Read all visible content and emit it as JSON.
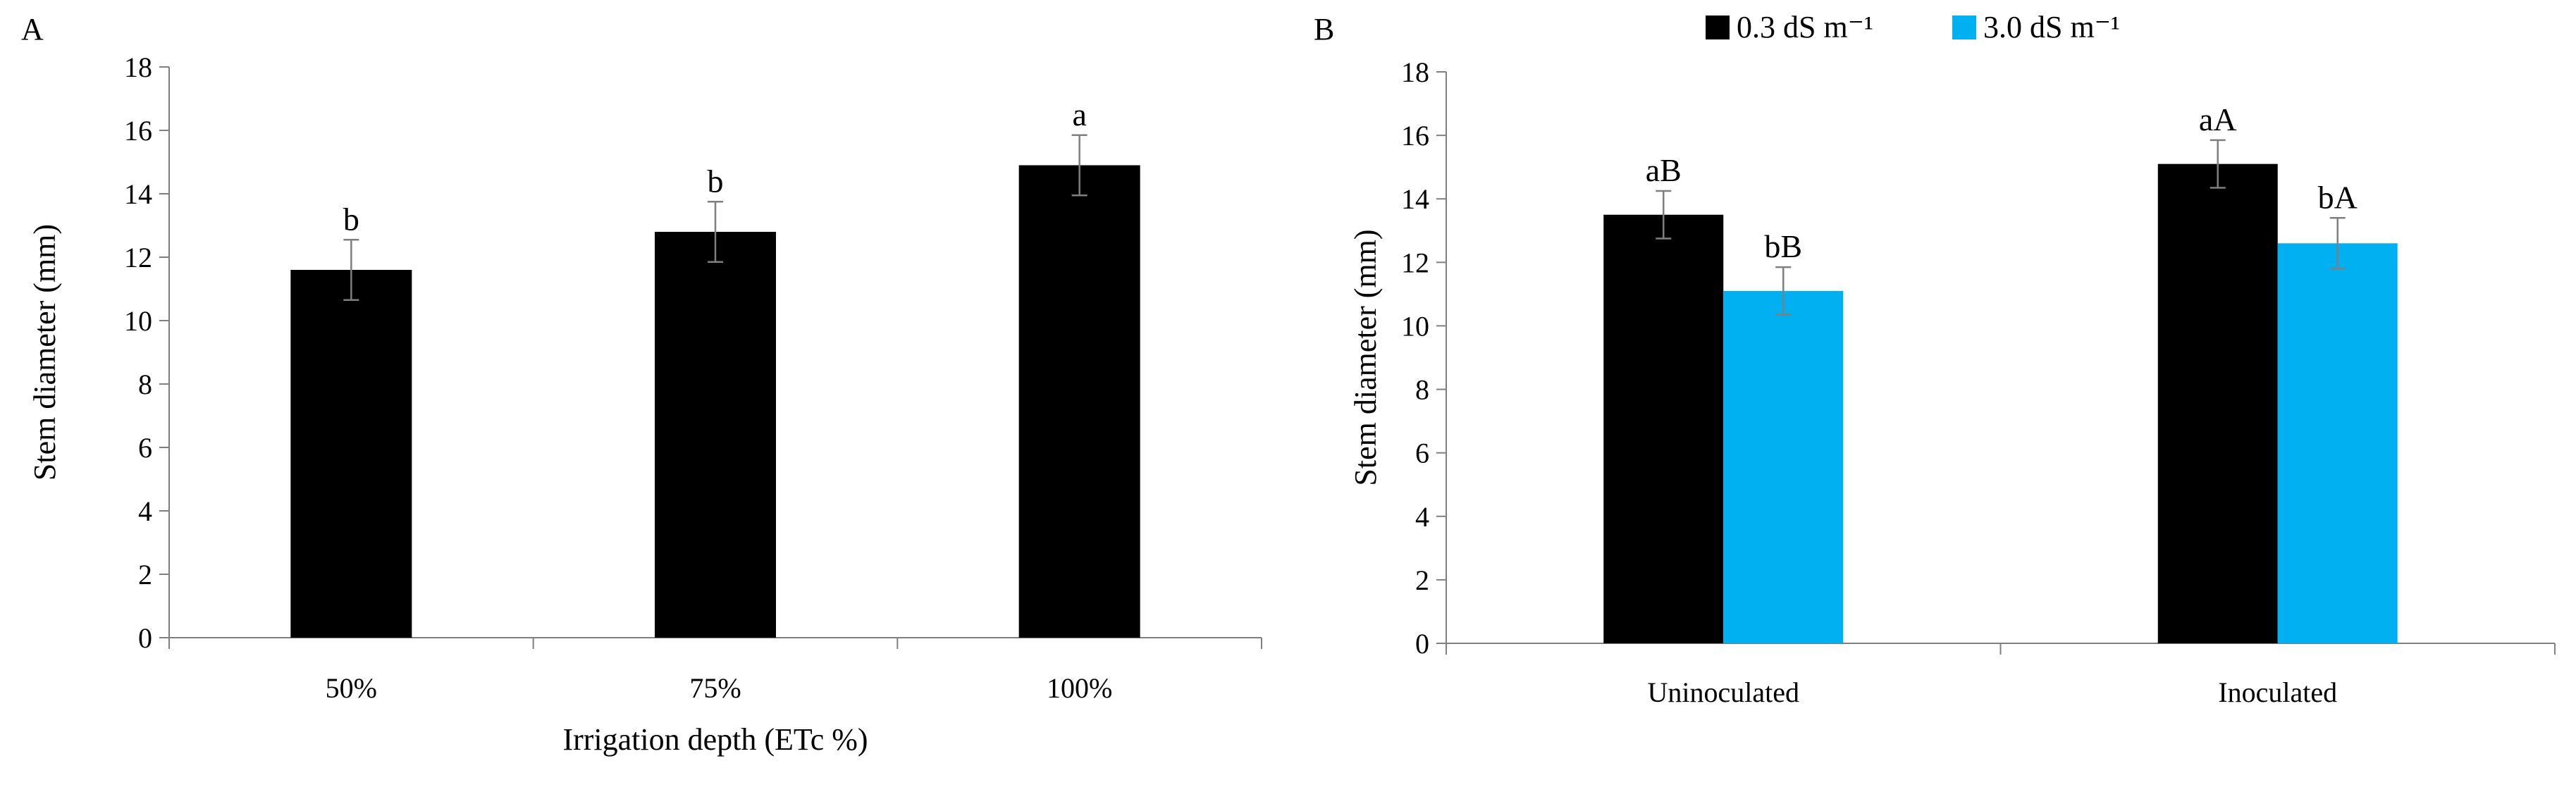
{
  "chart_data": [
    {
      "panel_label": "A",
      "type": "bar",
      "title": "",
      "xlabel": "Irrigation depth (ETc %)",
      "ylabel": "Stem diameter (mm)",
      "ylim": [
        0,
        18
      ],
      "yticks": [
        0,
        2,
        4,
        6,
        8,
        10,
        12,
        14,
        16,
        18
      ],
      "grid": false,
      "categories": [
        "50%",
        "75%",
        "100%"
      ],
      "series": [
        {
          "name": "",
          "color": "#000000",
          "values": [
            11.6,
            12.8,
            14.9
          ],
          "errors": [
            0.95,
            0.95,
            0.95
          ],
          "letters": [
            "b",
            "b",
            "a"
          ]
        }
      ]
    },
    {
      "panel_label": "B",
      "type": "bar",
      "title": "",
      "xlabel": "",
      "ylabel": "Stem diameter (mm)",
      "ylim": [
        0,
        18
      ],
      "yticks": [
        0,
        2,
        4,
        6,
        8,
        10,
        12,
        14,
        16,
        18
      ],
      "grid": false,
      "legend_position": "top",
      "categories": [
        "Uninoculated",
        "Inoculated"
      ],
      "series": [
        {
          "name": "0.3 dS m⁻¹",
          "color": "#000000",
          "values": [
            13.5,
            15.1
          ],
          "errors": [
            0.75,
            0.75
          ],
          "letters": [
            "aB",
            "aA"
          ]
        },
        {
          "name": "3.0 dS m⁻¹",
          "color": "#00b0f0",
          "values": [
            11.1,
            12.6
          ],
          "errors": [
            0.75,
            0.8
          ],
          "letters": [
            "bB",
            "bA"
          ]
        }
      ]
    }
  ]
}
